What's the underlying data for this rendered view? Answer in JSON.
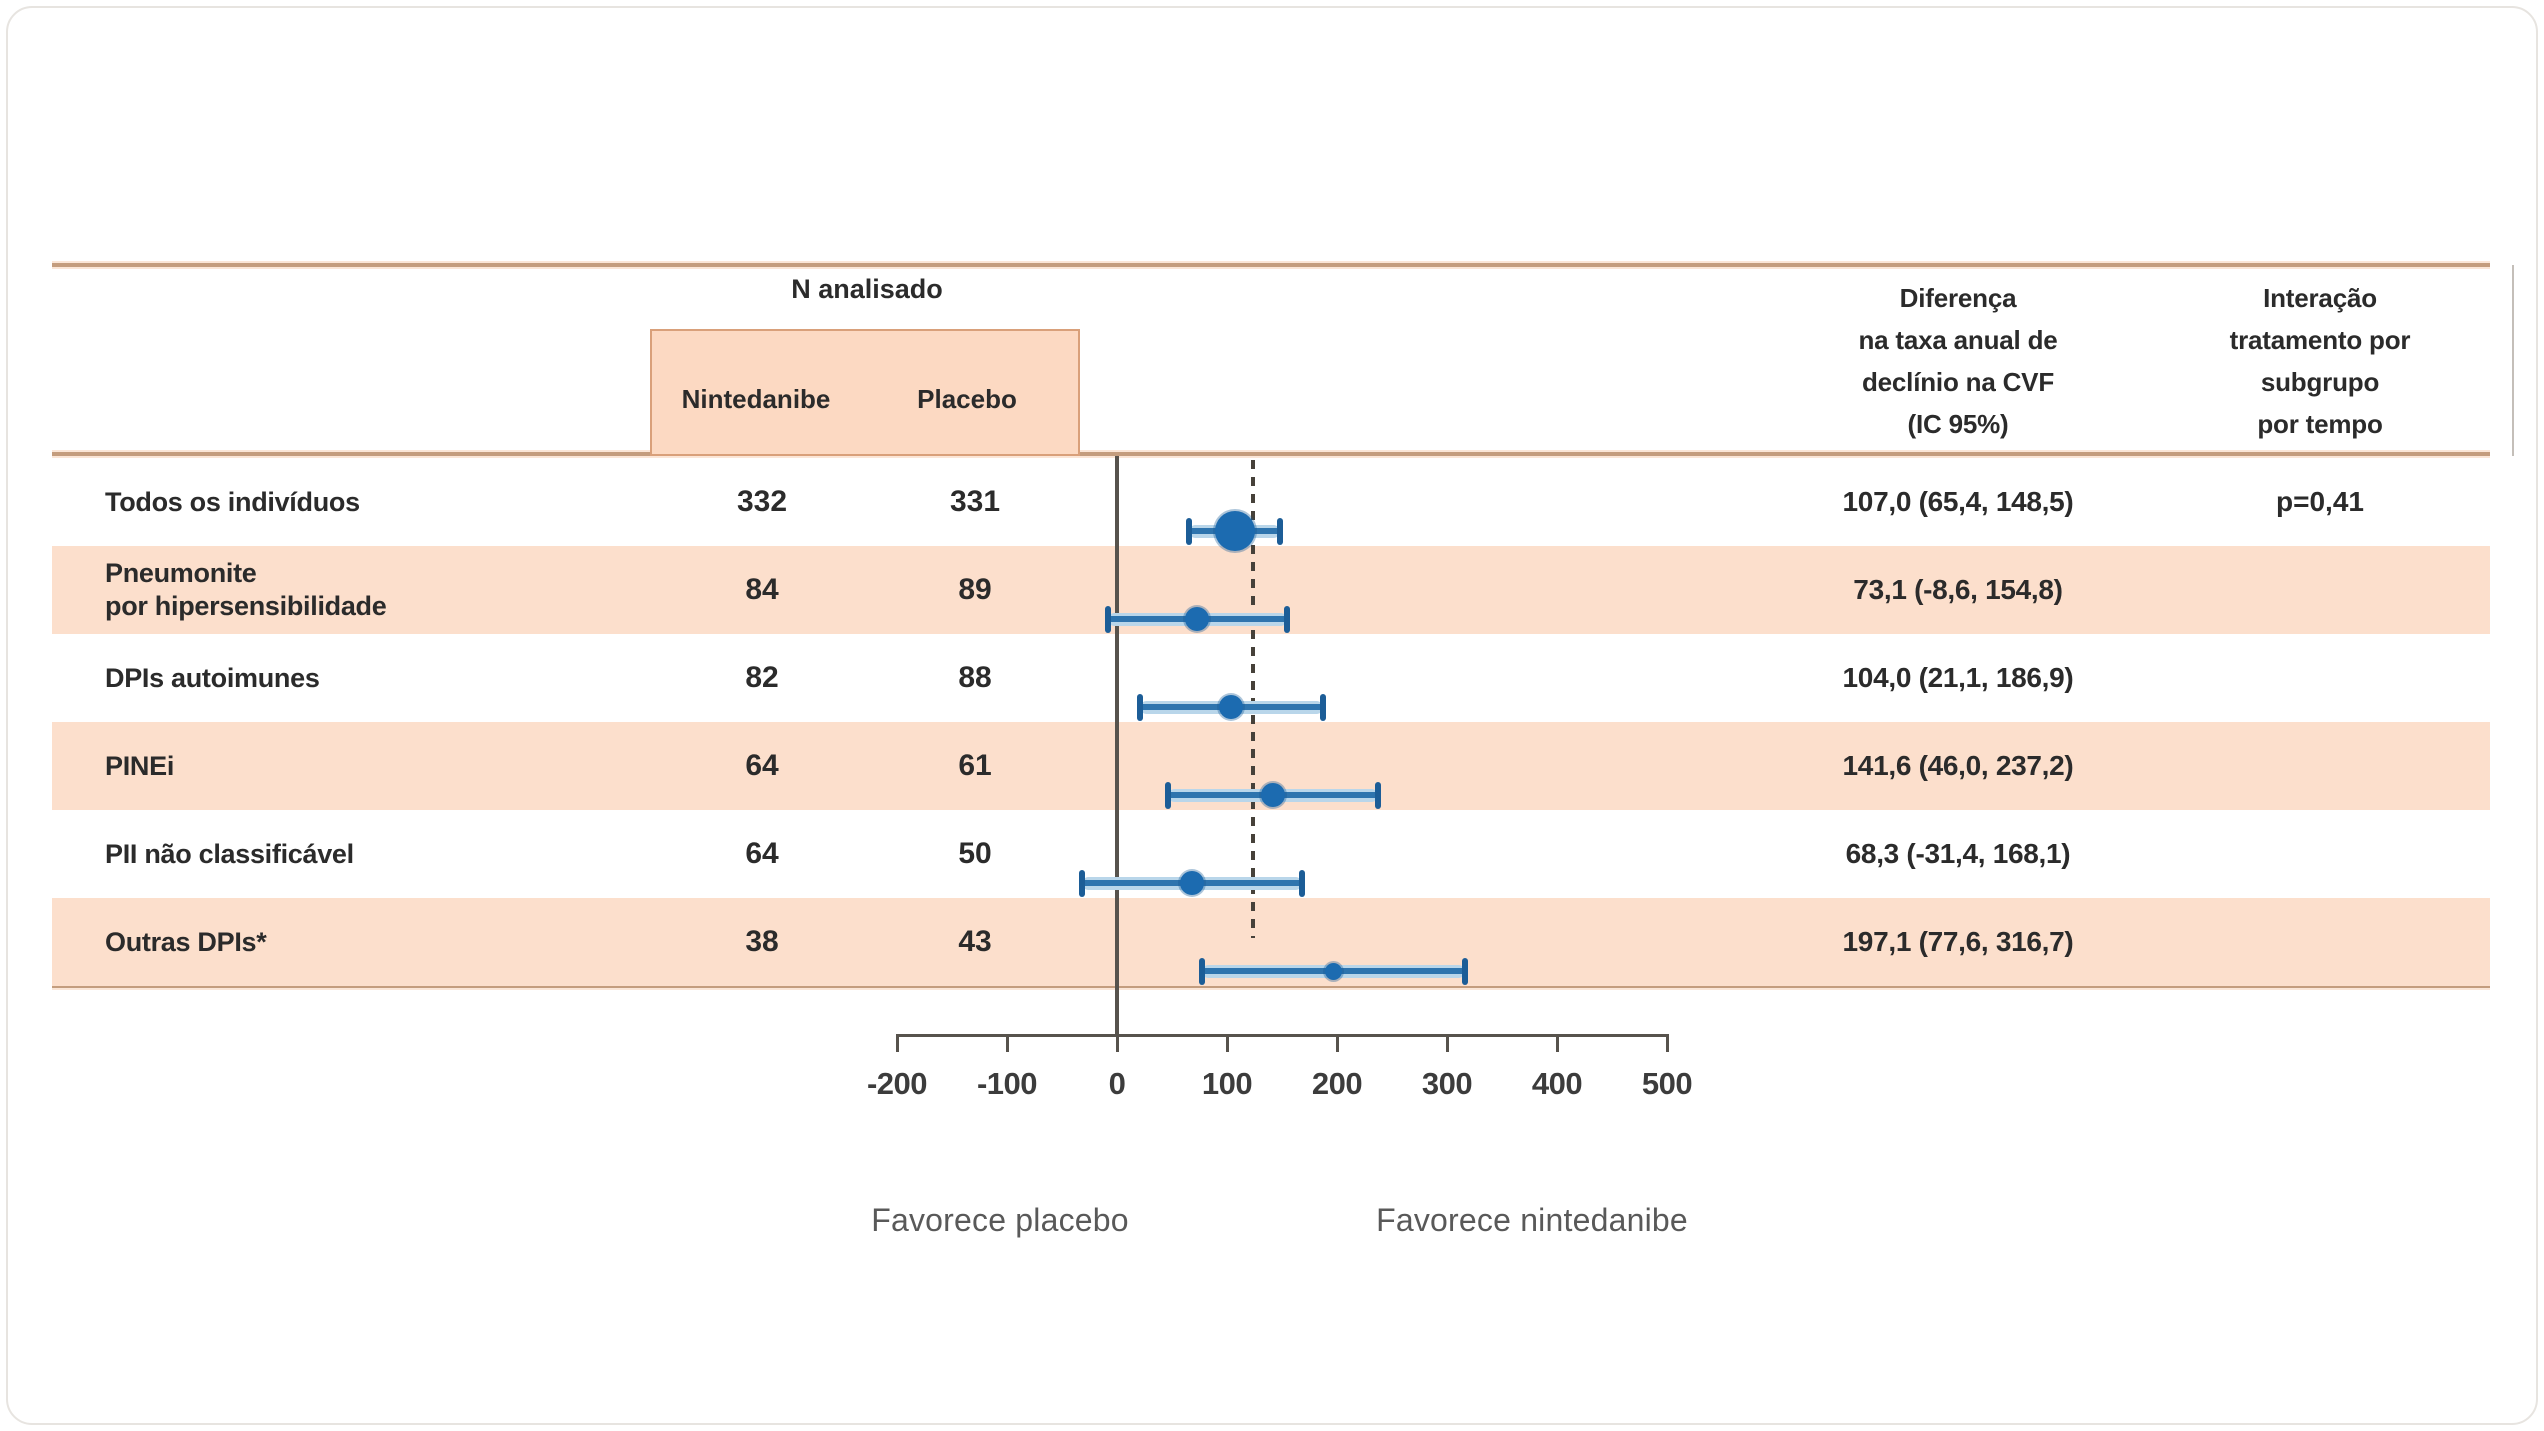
{
  "figure": {
    "header": {
      "n_analyzed": "N analisado",
      "arm_nintedanib": "Nintedanibe",
      "arm_placebo": "Placebo",
      "difference_header": "Diferença\nna taxa anual de\ndeclínio na CVF\n(IC 95%)",
      "interaction_header": "Interação\ntratamento por\nsubgrupo\npor tempo"
    },
    "footer": {
      "favors_left": "Favorece placebo",
      "favors_right": "Favorece nintedanibe"
    }
  },
  "chart_data": {
    "type": "forest",
    "title": "",
    "xlabel": "",
    "axis": {
      "ticks": [
        -200,
        -100,
        0,
        100,
        200,
        300,
        400,
        500
      ],
      "range": [
        -200,
        500
      ],
      "solid_reference_value": 0,
      "dashed_reference_value": 124
    },
    "rows": [
      {
        "label": "Todos os indivíduos",
        "n_nintedanib": "332",
        "n_placebo": "331",
        "estimate": 107.0,
        "ci_low": 65.4,
        "ci_high": 148.5,
        "difference_text": "107,0 (65,4, 148,5)",
        "interaction_text": "p=0,41",
        "marker": "large",
        "shaded": false
      },
      {
        "label": "Pneumonite\npor hipersensibilidade",
        "n_nintedanib": "84",
        "n_placebo": "89",
        "estimate": 73.1,
        "ci_low": -8.6,
        "ci_high": 154.8,
        "difference_text": "73,1 (-8,6, 154,8)",
        "interaction_text": "",
        "marker": "medium",
        "shaded": true
      },
      {
        "label": "DPIs autoimunes",
        "n_nintedanib": "82",
        "n_placebo": "88",
        "estimate": 104.0,
        "ci_low": 21.1,
        "ci_high": 186.9,
        "difference_text": "104,0 (21,1, 186,9)",
        "interaction_text": "",
        "marker": "medium",
        "shaded": false
      },
      {
        "label": "PINEi",
        "n_nintedanib": "64",
        "n_placebo": "61",
        "estimate": 141.6,
        "ci_low": 46.0,
        "ci_high": 237.2,
        "difference_text": "141,6 (46,0, 237,2)",
        "interaction_text": "",
        "marker": "medium",
        "shaded": true
      },
      {
        "label": "PII não classificável",
        "n_nintedanib": "64",
        "n_placebo": "50",
        "estimate": 68.3,
        "ci_low": -31.4,
        "ci_high": 168.1,
        "difference_text": "68,3 (-31,4, 168,1)",
        "interaction_text": "",
        "marker": "medium",
        "shaded": false
      },
      {
        "label": "Outras DPIs*",
        "n_nintedanib": "38",
        "n_placebo": "43",
        "estimate": 197.1,
        "ci_low": 77.6,
        "ci_high": 316.7,
        "difference_text": "197,1 (77,6, 316,7)",
        "interaction_text": "",
        "marker": "small",
        "shaded": true
      }
    ],
    "annotations": {
      "favors_left": "Favorece placebo",
      "favors_right": "Favorece nintedanibe"
    }
  },
  "colors": {
    "band": "#fcdfcc",
    "box_fill": "#fcd9c2",
    "box_border": "#d9a07a",
    "rule": "#c49d7e",
    "axis": "#57534d",
    "dashed": "#46413a",
    "marker": "#1c6bb0",
    "ci_core": "#2e74ae",
    "ci_halo": "#b9d6ea",
    "ci_cap": "#1c5d97",
    "text": "#2b2b2b",
    "muted_text": "#595959"
  }
}
